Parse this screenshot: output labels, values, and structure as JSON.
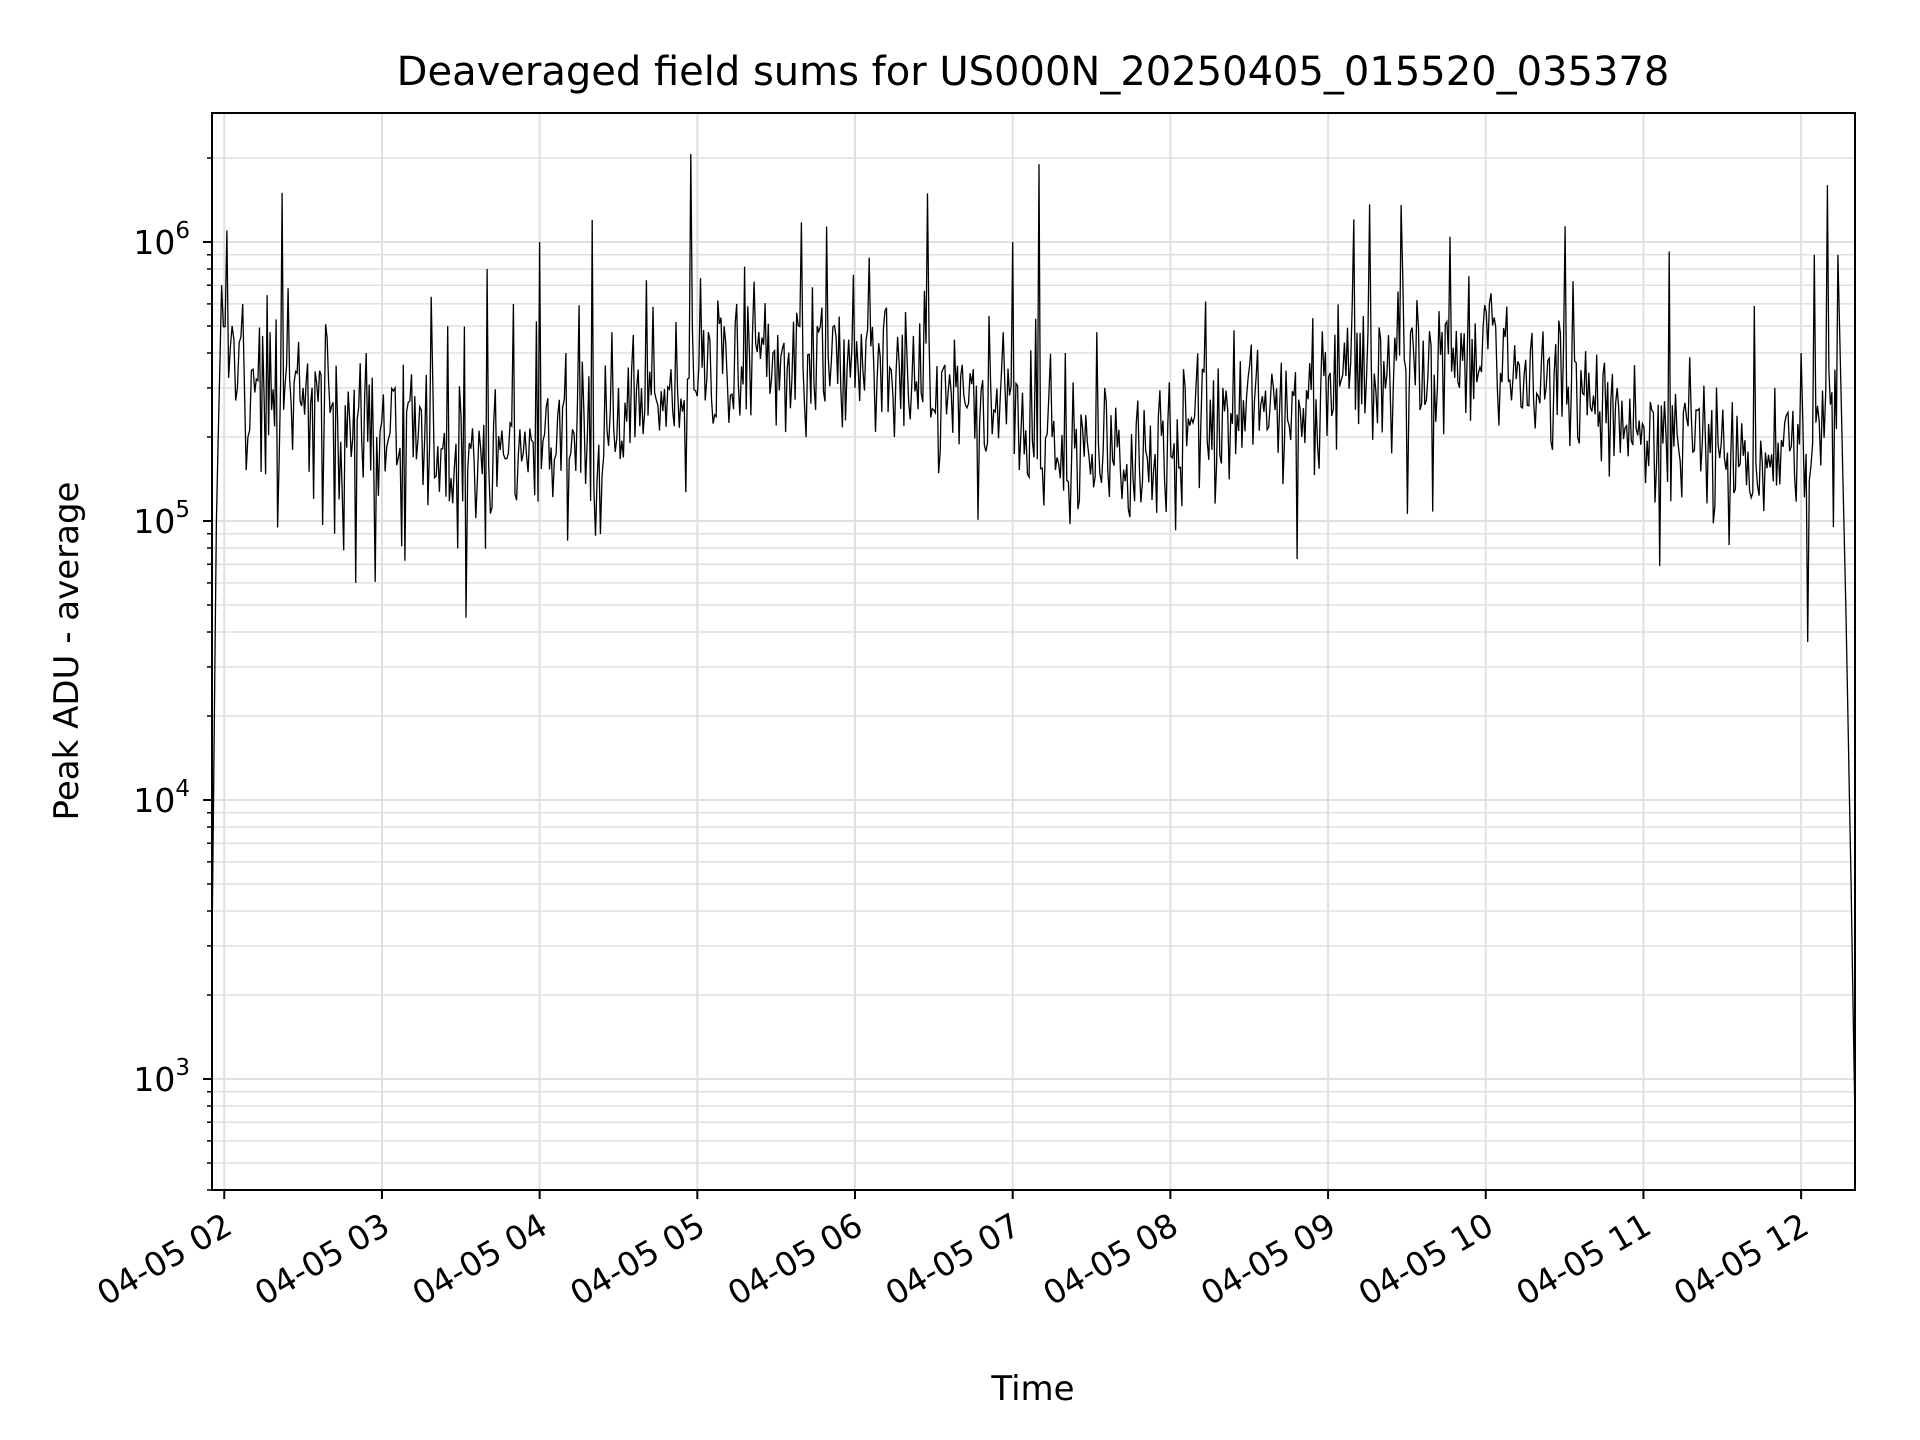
{
  "chart_data": {
    "type": "line",
    "title": "Deaveraged field sums for US000N_20250405_015520_035378",
    "xlabel": "Time",
    "ylabel": "Peak ADU - average",
    "yscale": "log",
    "ylim": [
      400,
      2900000
    ],
    "xlim": [
      "2025-04-05 01:55:20",
      "2025-04-05 12:20:30"
    ],
    "x_ticks": [
      {
        "label": "04-05 02",
        "value": "2025-04-05 02:00"
      },
      {
        "label": "04-05 03",
        "value": "2025-04-05 03:00"
      },
      {
        "label": "04-05 04",
        "value": "2025-04-05 04:00"
      },
      {
        "label": "04-05 05",
        "value": "2025-04-05 05:00"
      },
      {
        "label": "04-05 06",
        "value": "2025-04-05 06:00"
      },
      {
        "label": "04-05 07",
        "value": "2025-04-05 07:00"
      },
      {
        "label": "04-05 08",
        "value": "2025-04-05 08:00"
      },
      {
        "label": "04-05 09",
        "value": "2025-04-05 09:00"
      },
      {
        "label": "04-05 10",
        "value": "2025-04-05 10:00"
      },
      {
        "label": "04-05 11",
        "value": "2025-04-05 11:00"
      },
      {
        "label": "04-05 12",
        "value": "2025-04-05 12:00"
      }
    ],
    "y_ticks": [
      {
        "base": "10",
        "exp": "3",
        "value": 1000
      },
      {
        "base": "10",
        "exp": "4",
        "value": 10000
      },
      {
        "base": "10",
        "exp": "5",
        "value": 100000
      },
      {
        "base": "10",
        "exp": "6",
        "value": 1000000
      }
    ],
    "grid": true,
    "line_color": "#000000",
    "grid_color": "#e0e0e0",
    "series": [
      {
        "x": [
          "2025-04-05 01:55:20",
          "2025-04-05 01:57",
          "2025-04-05 01:59",
          "2025-04-05 02:01",
          "2025-04-05 02:03",
          "2025-04-05 02:05",
          "2025-04-05 02:07",
          "2025-04-05 02:09",
          "2025-04-05 02:11",
          "2025-04-05 02:14",
          "2025-04-05 02:18",
          "2025-04-05 02:22",
          "2025-04-05 02:26",
          "2025-04-05 02:30",
          "2025-04-05 02:34",
          "2025-04-05 02:38",
          "2025-04-05 02:42",
          "2025-04-05 02:46",
          "2025-04-05 02:50",
          "2025-04-05 02:54",
          "2025-04-05 02:58",
          "2025-04-05 03:05",
          "2025-04-05 03:15",
          "2025-04-05 03:25",
          "2025-04-05 03:32",
          "2025-04-05 03:40",
          "2025-04-05 03:50",
          "2025-04-05 04:00",
          "2025-04-05 04:10",
          "2025-04-05 04:20",
          "2025-04-05 04:30",
          "2025-04-05 04:40",
          "2025-04-05 04:50",
          "2025-04-05 05:00",
          "2025-04-05 05:15",
          "2025-04-05 05:30",
          "2025-04-05 05:45",
          "2025-04-05 06:00",
          "2025-04-05 06:15",
          "2025-04-05 06:30",
          "2025-04-05 06:45",
          "2025-04-05 07:00",
          "2025-04-05 07:10",
          "2025-04-05 07:20",
          "2025-04-05 07:35",
          "2025-04-05 07:50",
          "2025-04-05 08:05",
          "2025-04-05 08:20",
          "2025-04-05 08:35",
          "2025-04-05 08:50",
          "2025-04-05 09:05",
          "2025-04-05 09:20",
          "2025-04-05 09:35",
          "2025-04-05 09:50",
          "2025-04-05 10:05",
          "2025-04-05 10:20",
          "2025-04-05 10:35",
          "2025-04-05 10:50",
          "2025-04-05 11:05",
          "2025-04-05 11:20",
          "2025-04-05 11:35",
          "2025-04-05 11:50",
          "2025-04-05 12:00",
          "2025-04-05 12:05",
          "2025-04-05 12:10",
          "2025-04-05 12:14",
          "2025-04-05 12:17",
          "2025-04-05 12:19",
          "2025-04-05 12:20:30"
        ],
        "y": [
          3000,
          100000,
          700000,
          1100000,
          500000,
          300000,
          600000,
          200000,
          350000,
          150000,
          250000,
          1500000,
          180000,
          300000,
          120000,
          220000,
          90000,
          260000,
          60000,
          400000,
          200000,
          300000,
          250000,
          500000,
          45000,
          800000,
          600000,
          1000000,
          400000,
          1200000,
          300000,
          250000,
          350000,
          280000,
          600000,
          220000,
          250000,
          300000,
          200000,
          250000,
          350000,
          1000000,
          1900000,
          400000,
          300000,
          250000,
          350000,
          300000,
          280000,
          200000,
          320000,
          450000,
          250000,
          300000,
          220000,
          280000,
          200000,
          300000,
          160000,
          250000,
          130000,
          300000,
          400000,
          900000,
          1600000,
          900000,
          50000,
          5000,
          700
        ]
      }
    ]
  }
}
